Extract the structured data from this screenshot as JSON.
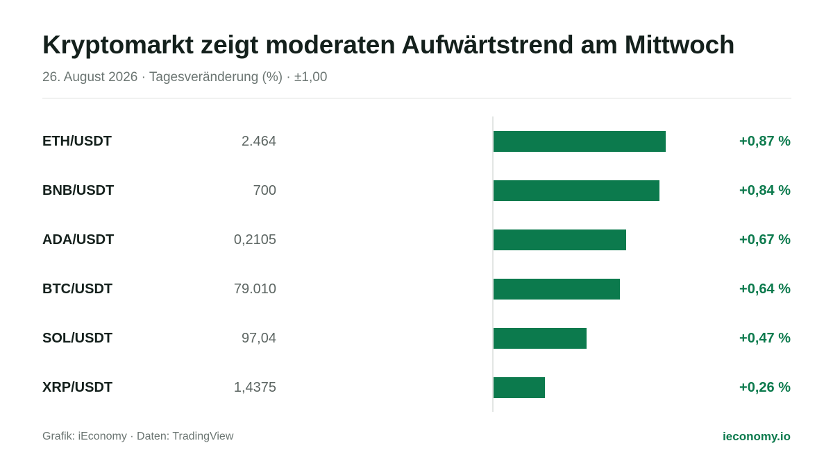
{
  "header": {
    "title": "Kryptomarkt zeigt moderaten Aufwärtstrend am Mittwoch",
    "subtitle": "26. August 2026 · Tagesveränderung (%) · ±1,00"
  },
  "footer": {
    "source": "Grafik: iEconomy · Daten: TradingView",
    "brand": "ieconomy.io"
  },
  "colors": {
    "positive": "#0c7a4d",
    "text": "#14201c",
    "muted": "#6b7572"
  },
  "chart_data": {
    "type": "bar",
    "orientation": "horizontal",
    "title": "Kryptomarkt zeigt moderaten Aufwärtstrend am Mittwoch",
    "subtitle": "26. August 2026 · Tagesveränderung (%) · ±1,00",
    "xlim": [
      0,
      1.0
    ],
    "categories": [
      "ETH/USDT",
      "BNB/USDT",
      "ADA/USDT",
      "BTC/USDT",
      "SOL/USDT",
      "XRP/USDT"
    ],
    "prices": [
      "2.464",
      "700",
      "0,2105",
      "79.010",
      "97,04",
      "1,4375"
    ],
    "values": [
      0.87,
      0.84,
      0.67,
      0.64,
      0.47,
      0.26
    ],
    "value_labels": [
      "+0,87 %",
      "+0,84 %",
      "+0,67 %",
      "+0,64 %",
      "+0,47 %",
      "+0,26 %"
    ]
  }
}
